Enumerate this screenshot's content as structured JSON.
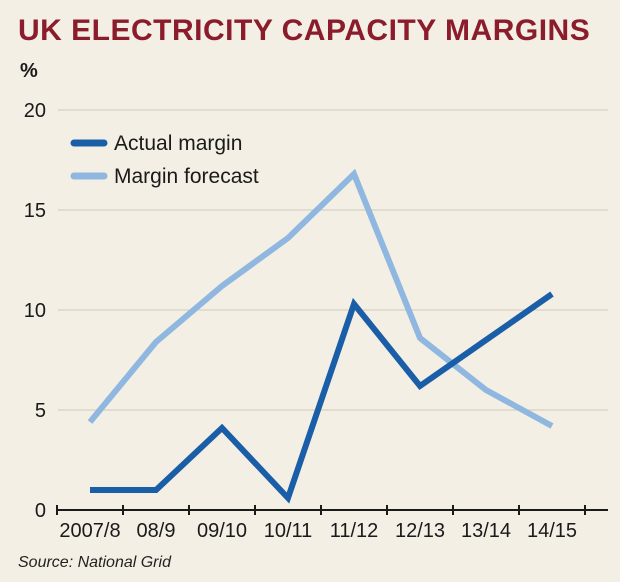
{
  "title": "UK ELECTRICITY CAPACITY MARGINS",
  "unit": "%",
  "source": "Source: National Grid",
  "chart_data": {
    "type": "line",
    "title": "UK ELECTRICITY CAPACITY MARGINS",
    "ylabel": "%",
    "xlabel": "",
    "ylim": [
      0,
      20
    ],
    "yticks": [
      0,
      5,
      10,
      15,
      20
    ],
    "categories": [
      "2007/8",
      "08/9",
      "09/10",
      "10/11",
      "11/12",
      "12/13",
      "13/14",
      "14/15"
    ],
    "grid": true,
    "legend": "top-left",
    "series": [
      {
        "name": "Actual margin",
        "color": "#1b5ea8",
        "values": [
          1.0,
          1.0,
          4.1,
          0.6,
          10.3,
          6.2,
          8.5,
          10.8
        ]
      },
      {
        "name": "Margin forecast",
        "color": "#8fb7e0",
        "values": [
          4.4,
          8.4,
          11.2,
          13.6,
          16.8,
          8.6,
          6.0,
          4.2
        ]
      }
    ]
  }
}
